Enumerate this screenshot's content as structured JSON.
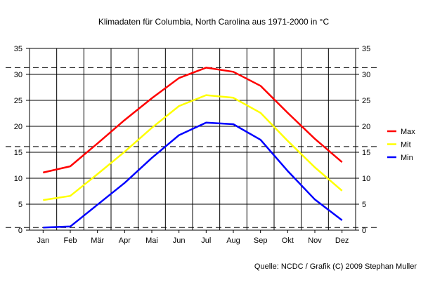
{
  "chart_data": {
    "type": "line",
    "title": "Klimadaten für Columbia, North Carolina aus 1971-2000 in °C",
    "categories": [
      "Jan",
      "Feb",
      "Mär",
      "Apr",
      "Mai",
      "Jun",
      "Jul",
      "Aug",
      "Sep",
      "Okt",
      "Nov",
      "Dez"
    ],
    "ylim": [
      0,
      35
    ],
    "yticks": [
      "0",
      "5",
      "10",
      "15",
      "20",
      "25",
      "30",
      "35"
    ],
    "grid": true,
    "legend_position": "right",
    "series": [
      {
        "name": "Max",
        "color": "#ff0000",
        "values": [
          11.1,
          12.3,
          16.7,
          21.2,
          25.4,
          29.3,
          31.3,
          30.5,
          27.8,
          22.6,
          17.6,
          13.1
        ]
      },
      {
        "name": "Mit",
        "color": "#ffff00",
        "values": [
          5.8,
          6.6,
          10.8,
          15.1,
          19.7,
          23.9,
          26.0,
          25.5,
          22.6,
          17.2,
          12.1,
          7.6
        ]
      },
      {
        "name": "Min",
        "color": "#0000ff",
        "values": [
          0.5,
          0.7,
          4.9,
          9.1,
          13.9,
          18.3,
          20.7,
          20.4,
          17.4,
          11.4,
          5.9,
          1.9
        ]
      }
    ],
    "reference_lines": [
      31.3,
      16.1,
      0.5
    ],
    "source": "Quelle: NCDC / Grafik (C) 2009 Stephan Muller"
  }
}
